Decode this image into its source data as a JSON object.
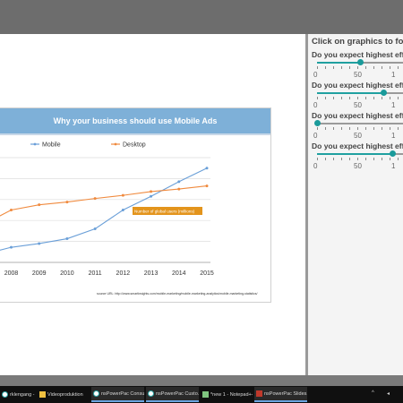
{
  "slide": {
    "title": "Why your business should use Mobile Ads",
    "source": "source URL: http://www.smartinsights.com/mobile-marketing/mobile-marketing-analytics/mobile-marketing-statistics/"
  },
  "chart_data": {
    "type": "line",
    "title": "",
    "xlabel": "",
    "ylabel": "",
    "categories": [
      "2008",
      "2009",
      "2010",
      "2011",
      "2012",
      "2013",
      "2014",
      "2015"
    ],
    "x": [
      2007.5,
      2008,
      2009,
      2010,
      2011,
      2012,
      2013,
      2014,
      2015
    ],
    "series": [
      {
        "name": "Mobile",
        "color": "#6a9fd8",
        "values": [
          0.55,
          0.72,
          0.9,
          1.13,
          1.6,
          2.5,
          3.15,
          3.85,
          4.5
        ]
      },
      {
        "name": "Desktop",
        "color": "#f08a3e",
        "values": [
          2.15,
          2.5,
          2.75,
          2.88,
          3.05,
          3.2,
          3.38,
          3.5,
          3.65
        ]
      }
    ],
    "ylim": [
      0,
      5
    ],
    "xlim": [
      2007.6,
      2015
    ],
    "grid": true,
    "legend_position": "top",
    "annotation": "Number of global users (millions)"
  },
  "side_panel": {
    "title": "Click on graphics to foc",
    "questions": [
      {
        "text": "Do you expect highest effo",
        "value": 0.5
      },
      {
        "text": "Do you expect highest effo",
        "value": 0.77
      },
      {
        "text": "Do you expect highest effo",
        "value": 0.0
      },
      {
        "text": "Do you expect highest effo",
        "value": 0.88
      }
    ],
    "tick_labels": [
      "0",
      "50",
      "1"
    ]
  },
  "taskbar": {
    "items": [
      {
        "label": "rklengang - reKa",
        "icon": "chrome-icon",
        "active": false
      },
      {
        "label": "Videoproduktion",
        "icon": "folder-icon",
        "active": false
      },
      {
        "label": "nsPowerPac Consu...",
        "icon": "chrome-icon",
        "active": true
      },
      {
        "label": "nsPowerPac Custo...",
        "icon": "chrome-icon",
        "active": true
      },
      {
        "label": "*new 1 - Notepad++",
        "icon": "notepad-icon",
        "active": false
      },
      {
        "label": "nsPowerPac Slides...",
        "icon": "ppt-icon",
        "active": true
      }
    ],
    "colors": {
      "background": "#101010",
      "active_underline": "#6aa4e0"
    }
  }
}
